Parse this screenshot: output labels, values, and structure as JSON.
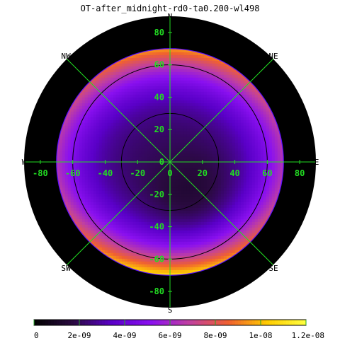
{
  "chart_data": {
    "type": "heatmap",
    "title": "OT-after_midnight-rd0-ta0.200-wl498",
    "projection": "polar-sky",
    "compass": {
      "N": "N",
      "NE": "NE",
      "E": "E",
      "SE": "SE",
      "S": "S",
      "SW": "SW",
      "W": "W",
      "NW": "NW"
    },
    "x_ticks": [
      "-80",
      "-60",
      "-40",
      "-20",
      "0",
      "20",
      "40",
      "60",
      "80"
    ],
    "y_ticks": [
      "80",
      "60",
      "40",
      "20",
      "0",
      "-20",
      "-40",
      "-60",
      "-80"
    ],
    "xlim": [
      -90,
      90
    ],
    "ylim": [
      -90,
      90
    ],
    "data_radius": 70,
    "contour_radii": [
      30,
      60
    ],
    "colorbar": {
      "labels": [
        "0",
        "2e-09",
        "4e-09",
        "6e-09",
        "8e-09",
        "1e-08",
        "1.2e-08"
      ],
      "range": [
        0,
        1.2e-08
      ],
      "colormap": [
        "#000000",
        "#2a0a40",
        "#5a00c8",
        "#8a10f0",
        "#c040a0",
        "#f06030",
        "#ffcc00",
        "#ffff40"
      ]
    },
    "grid": true,
    "field_estimate": {
      "center_value": 2.2e-09,
      "min_value": 1.2e-09,
      "min_location": [
        15,
        -25
      ],
      "edge_value_north": 9.5e-09,
      "edge_value_south": 1.1e-08,
      "edge_value_east_west": 6.5e-09
    },
    "colors": {
      "outer_disc": "#000000",
      "grid_lines": "#22dd22",
      "contour_lines": "#000000",
      "tick_labels": "#22dd22"
    }
  }
}
